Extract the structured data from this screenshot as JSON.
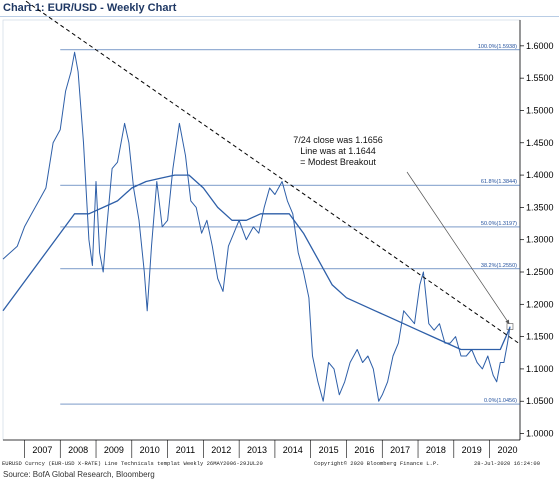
{
  "header": {
    "title": "Chart 1: EUR/USD - Weekly Chart"
  },
  "footer": {
    "left": "EURUSD Curncy (EUR-USD X-RATE) Line Technicals templat  Weekly 26MAY2006-29JUL20",
    "middle": "Copyright© 2020 Bloomberg Finance L.P.",
    "right": "28-Jul-2020 16:24:00",
    "source": "Source: BofA Global Research, Bloomberg"
  },
  "chart_data": {
    "type": "line",
    "title": "Chart 1: EUR/USD - Weekly Chart",
    "xlabel": "",
    "ylabel": "",
    "ylim": [
      0.99,
      1.64
    ],
    "y_ticks": [
      "1.0000",
      "1.0500",
      "1.1000",
      "1.1500",
      "1.2000",
      "1.2500",
      "1.3000",
      "1.3500",
      "1.4000",
      "1.4500",
      "1.5000",
      "1.5500",
      "1.6000"
    ],
    "x_ticks": [
      "2007",
      "2008",
      "2009",
      "2010",
      "2011",
      "2012",
      "2013",
      "2014",
      "2015",
      "2016",
      "2017",
      "2018",
      "2019",
      "2020"
    ],
    "grid": false,
    "series": [
      {
        "role": "price",
        "color": "#2e5fa8",
        "x": [
          2006.4,
          2006.6,
          2006.8,
          2007.0,
          2007.2,
          2007.4,
          2007.6,
          2007.8,
          2008.0,
          2008.15,
          2008.3,
          2008.4,
          2008.5,
          2008.65,
          2008.8,
          2008.9,
          2009.0,
          2009.1,
          2009.2,
          2009.3,
          2009.45,
          2009.6,
          2009.8,
          2009.92,
          2010.05,
          2010.2,
          2010.35,
          2010.43,
          2010.55,
          2010.7,
          2010.85,
          2011.0,
          2011.15,
          2011.33,
          2011.5,
          2011.65,
          2011.8,
          2011.95,
          2012.1,
          2012.25,
          2012.4,
          2012.55,
          2012.7,
          2012.85,
          2013.0,
          2013.2,
          2013.4,
          2013.55,
          2013.7,
          2013.85,
          2014.0,
          2014.2,
          2014.35,
          2014.5,
          2014.65,
          2014.8,
          2014.95,
          2015.05,
          2015.2,
          2015.35,
          2015.5,
          2015.65,
          2015.8,
          2015.95,
          2016.1,
          2016.3,
          2016.45,
          2016.6,
          2016.75,
          2016.9,
          2017.0,
          2017.15,
          2017.3,
          2017.45,
          2017.6,
          2017.75,
          2017.9,
          2018.05,
          2018.15,
          2018.3,
          2018.45,
          2018.6,
          2018.75,
          2018.9,
          2019.05,
          2019.2,
          2019.35,
          2019.5,
          2019.65,
          2019.8,
          2019.95,
          2020.1,
          2020.2,
          2020.3,
          2020.4,
          2020.5,
          2020.57
        ],
        "y": [
          1.27,
          1.28,
          1.29,
          1.32,
          1.34,
          1.36,
          1.38,
          1.45,
          1.47,
          1.53,
          1.56,
          1.59,
          1.56,
          1.45,
          1.3,
          1.26,
          1.39,
          1.28,
          1.25,
          1.32,
          1.41,
          1.42,
          1.48,
          1.45,
          1.38,
          1.33,
          1.25,
          1.19,
          1.29,
          1.39,
          1.32,
          1.33,
          1.41,
          1.48,
          1.43,
          1.36,
          1.35,
          1.31,
          1.33,
          1.29,
          1.24,
          1.22,
          1.29,
          1.31,
          1.33,
          1.3,
          1.32,
          1.31,
          1.35,
          1.38,
          1.37,
          1.39,
          1.36,
          1.34,
          1.28,
          1.25,
          1.21,
          1.12,
          1.08,
          1.05,
          1.11,
          1.1,
          1.06,
          1.08,
          1.11,
          1.13,
          1.11,
          1.12,
          1.1,
          1.05,
          1.06,
          1.08,
          1.12,
          1.14,
          1.19,
          1.18,
          1.17,
          1.23,
          1.25,
          1.17,
          1.16,
          1.17,
          1.14,
          1.14,
          1.15,
          1.12,
          1.12,
          1.13,
          1.11,
          1.1,
          1.12,
          1.09,
          1.08,
          1.11,
          1.11,
          1.14,
          1.1656
        ]
      },
      {
        "role": "moving-average",
        "color": "#2e5fa8",
        "x": [
          2006.4,
          2006.8,
          2007.2,
          2007.6,
          2008.0,
          2008.4,
          2008.8,
          2009.2,
          2009.6,
          2010.0,
          2010.4,
          2010.8,
          2011.2,
          2011.6,
          2012.0,
          2012.4,
          2012.8,
          2013.2,
          2013.6,
          2014.0,
          2014.4,
          2014.8,
          2015.2,
          2015.6,
          2016.0,
          2016.4,
          2016.8,
          2017.2,
          2017.6,
          2018.0,
          2018.4,
          2018.8,
          2019.2,
          2019.6,
          2020.0,
          2020.3,
          2020.57
        ],
        "y": [
          1.19,
          1.22,
          1.25,
          1.28,
          1.31,
          1.34,
          1.34,
          1.35,
          1.36,
          1.38,
          1.39,
          1.395,
          1.4,
          1.4,
          1.38,
          1.35,
          1.33,
          1.33,
          1.34,
          1.34,
          1.34,
          1.31,
          1.27,
          1.23,
          1.21,
          1.2,
          1.19,
          1.18,
          1.17,
          1.16,
          1.15,
          1.14,
          1.13,
          1.13,
          1.13,
          1.13,
          1.1644
        ]
      }
    ],
    "trendline": {
      "x": [
        2006.4,
        2020.85
      ],
      "y": [
        1.6938,
        1.1384
      ],
      "style": "dashed",
      "color": "#000000"
    },
    "fib_levels": [
      {
        "label": "100.0%(1.5938)",
        "value": 1.5938
      },
      {
        "label": "61.8%(1.3844)",
        "value": 1.3844
      },
      {
        "label": "50.0%(1.3197)",
        "value": 1.3197
      },
      {
        "label": "38.2%(1.2550)",
        "value": 1.255
      },
      {
        "label": "0.0%(1.0456)",
        "value": 1.0456
      }
    ],
    "annotation": {
      "lines": [
        "7/24 close was 1.1656",
        "Line was at 1.1644",
        "= Modest Breakout"
      ],
      "arrow_to": {
        "x": 2020.57,
        "y": 1.1656
      }
    }
  }
}
